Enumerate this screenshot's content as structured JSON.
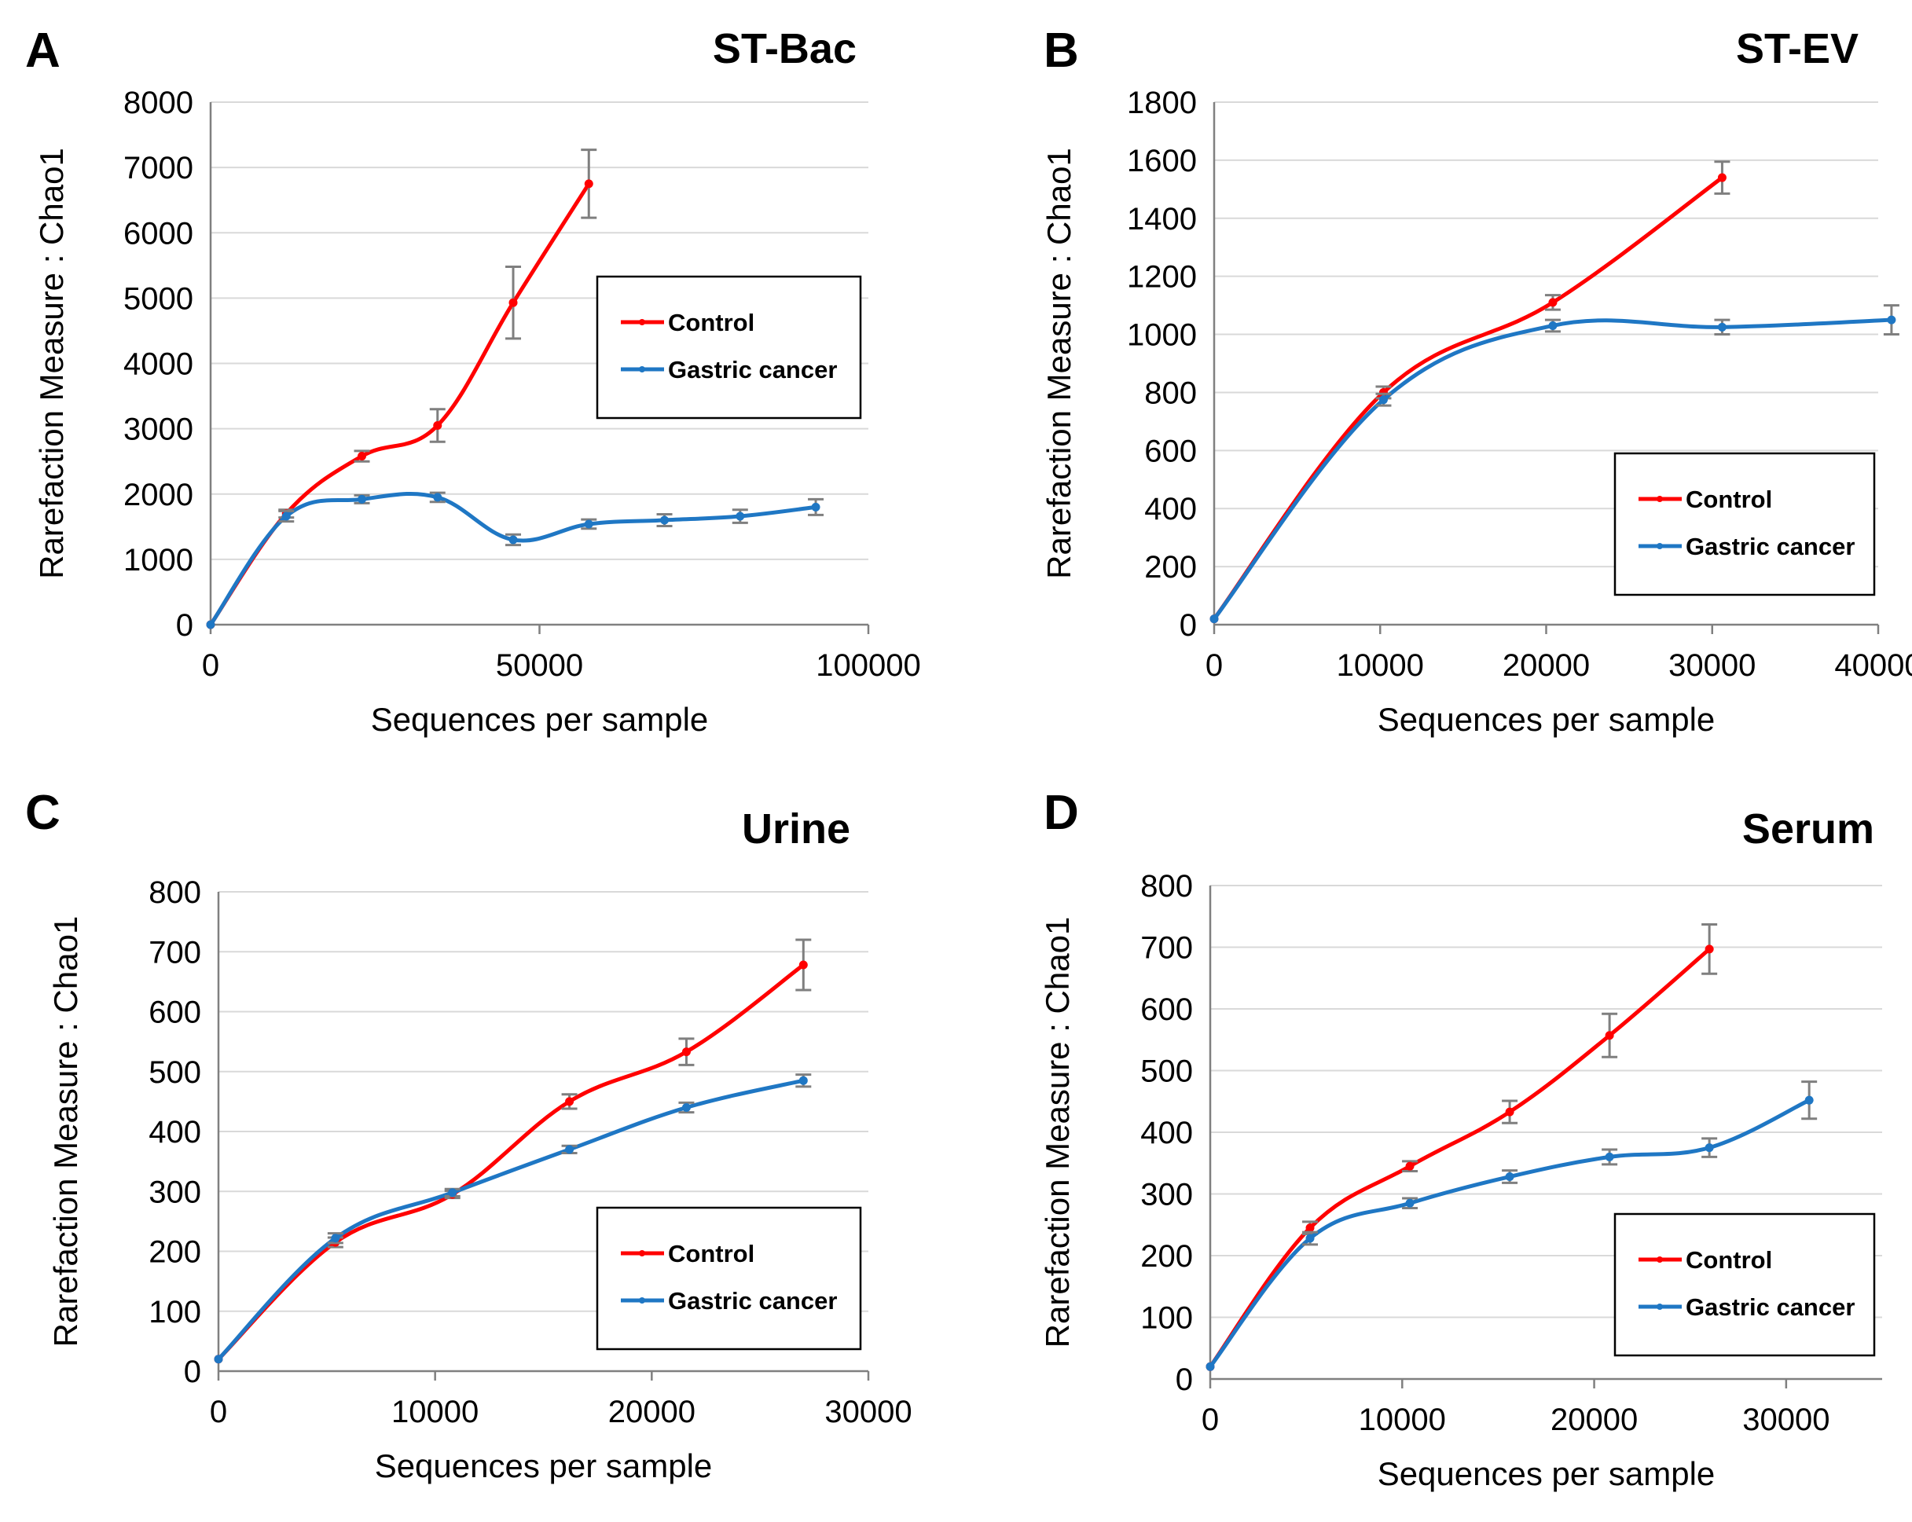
{
  "figure": {
    "legend_labels": [
      "Control",
      "Gastric cancer"
    ],
    "colors": {
      "control": "#ff0000",
      "gastric": "#1f77c4",
      "grid": "#d9d9d9",
      "axis": "#808080",
      "errbar": "#7f7f7f"
    }
  },
  "chart_data": [
    {
      "panel": "A",
      "type": "line",
      "title": "ST-Bac",
      "xlabel": "Sequences per sample",
      "ylabel": "Rarefaction Measure : Chao1",
      "xlim": [
        0,
        100000
      ],
      "ylim": [
        0,
        8000
      ],
      "xticks": [
        0,
        50000,
        100000
      ],
      "xtick_labels": [
        "0",
        "50000",
        "100000"
      ],
      "yticks": [
        0,
        1000,
        2000,
        3000,
        4000,
        5000,
        6000,
        7000,
        8000
      ],
      "ytick_labels": [
        "0",
        "1000",
        "2000",
        "3000",
        "4000",
        "5000",
        "6000",
        "7000",
        "8000"
      ],
      "legend_position": "center-right",
      "series": [
        {
          "name": "Control",
          "color": "#ff0000",
          "x": [
            0,
            11500,
            23000,
            34500,
            46000,
            57500
          ],
          "y": [
            0,
            1700,
            2580,
            3050,
            4930,
            6750
          ],
          "err": [
            0,
            60,
            80,
            250,
            550,
            520
          ]
        },
        {
          "name": "Gastric cancer",
          "color": "#1f77c4",
          "x": [
            0,
            11500,
            23000,
            34500,
            46000,
            57500,
            69000,
            80500,
            92000
          ],
          "y": [
            0,
            1660,
            1920,
            1950,
            1300,
            1540,
            1600,
            1660,
            1800
          ],
          "err": [
            0,
            80,
            60,
            70,
            80,
            70,
            90,
            100,
            120
          ]
        }
      ]
    },
    {
      "panel": "B",
      "type": "line",
      "title": "ST-EV",
      "xlabel": "Sequences per sample",
      "ylabel": "Rarefaction Measure : Chao1",
      "xlim": [
        0,
        40000
      ],
      "ylim": [
        0,
        1800
      ],
      "xticks": [
        0,
        10000,
        20000,
        30000,
        40000
      ],
      "xtick_labels": [
        "0",
        "10000",
        "20000",
        "30000",
        "40000"
      ],
      "yticks": [
        0,
        200,
        400,
        600,
        800,
        1000,
        1200,
        1400,
        1600,
        1800
      ],
      "ytick_labels": [
        "0",
        "200",
        "400",
        "600",
        "800",
        "1000",
        "1200",
        "1400",
        "1600",
        "1800"
      ],
      "legend_position": "bottom-right",
      "series": [
        {
          "name": "Control",
          "color": "#ff0000",
          "x": [
            0,
            10200,
            20400,
            30600
          ],
          "y": [
            20,
            800,
            1110,
            1540
          ],
          "err": [
            0,
            20,
            25,
            55
          ]
        },
        {
          "name": "Gastric cancer",
          "color": "#1f77c4",
          "x": [
            0,
            10200,
            20400,
            30600,
            40800
          ],
          "y": [
            20,
            775,
            1030,
            1025,
            1050
          ],
          "err": [
            0,
            20,
            20,
            25,
            50
          ]
        }
      ]
    },
    {
      "panel": "C",
      "type": "line",
      "title": "Urine",
      "xlabel": "Sequences per sample",
      "ylabel": "Rarefaction Measure : Chao1",
      "xlim": [
        0,
        30000
      ],
      "ylim": [
        0,
        800
      ],
      "xticks": [
        0,
        10000,
        20000,
        30000
      ],
      "xtick_labels": [
        "0",
        "10000",
        "20000",
        "30000"
      ],
      "yticks": [
        0,
        100,
        200,
        300,
        400,
        500,
        600,
        700,
        800
      ],
      "ytick_labels": [
        "0",
        "100",
        "200",
        "300",
        "400",
        "500",
        "600",
        "700",
        "800"
      ],
      "legend_position": "bottom-right",
      "series": [
        {
          "name": "Control",
          "color": "#ff0000",
          "x": [
            0,
            5400,
            10800,
            16200,
            21600,
            27000
          ],
          "y": [
            20,
            215,
            295,
            450,
            533,
            678
          ],
          "err": [
            0,
            8,
            6,
            12,
            22,
            42
          ]
        },
        {
          "name": "Gastric cancer",
          "color": "#1f77c4",
          "x": [
            0,
            5400,
            10800,
            16200,
            21600,
            27000
          ],
          "y": [
            20,
            222,
            298,
            370,
            440,
            485
          ],
          "err": [
            0,
            8,
            6,
            6,
            8,
            10
          ]
        }
      ]
    },
    {
      "panel": "D",
      "type": "line",
      "title": "Serum",
      "xlabel": "Sequences per sample",
      "ylabel": "Rarefaction Measure : Chao1",
      "xlim": [
        0,
        35000
      ],
      "ylim": [
        0,
        800
      ],
      "xticks": [
        0,
        10000,
        20000,
        30000
      ],
      "xtick_labels": [
        "0",
        "10000",
        "20000",
        "30000"
      ],
      "yticks": [
        0,
        100,
        200,
        300,
        400,
        500,
        600,
        700,
        800
      ],
      "ytick_labels": [
        "0",
        "100",
        "200",
        "300",
        "400",
        "500",
        "600",
        "700",
        "800"
      ],
      "legend_position": "bottom-right",
      "series": [
        {
          "name": "Control",
          "color": "#ff0000",
          "x": [
            0,
            5200,
            10400,
            15600,
            20800,
            26000
          ],
          "y": [
            20,
            245,
            345,
            433,
            557,
            697
          ],
          "err": [
            0,
            10,
            8,
            18,
            35,
            40
          ]
        },
        {
          "name": "Gastric cancer",
          "color": "#1f77c4",
          "x": [
            0,
            5200,
            10400,
            15600,
            20800,
            26000,
            31200
          ],
          "y": [
            20,
            228,
            285,
            328,
            360,
            375,
            452
          ],
          "err": [
            0,
            10,
            8,
            10,
            12,
            15,
            30
          ]
        }
      ]
    }
  ]
}
